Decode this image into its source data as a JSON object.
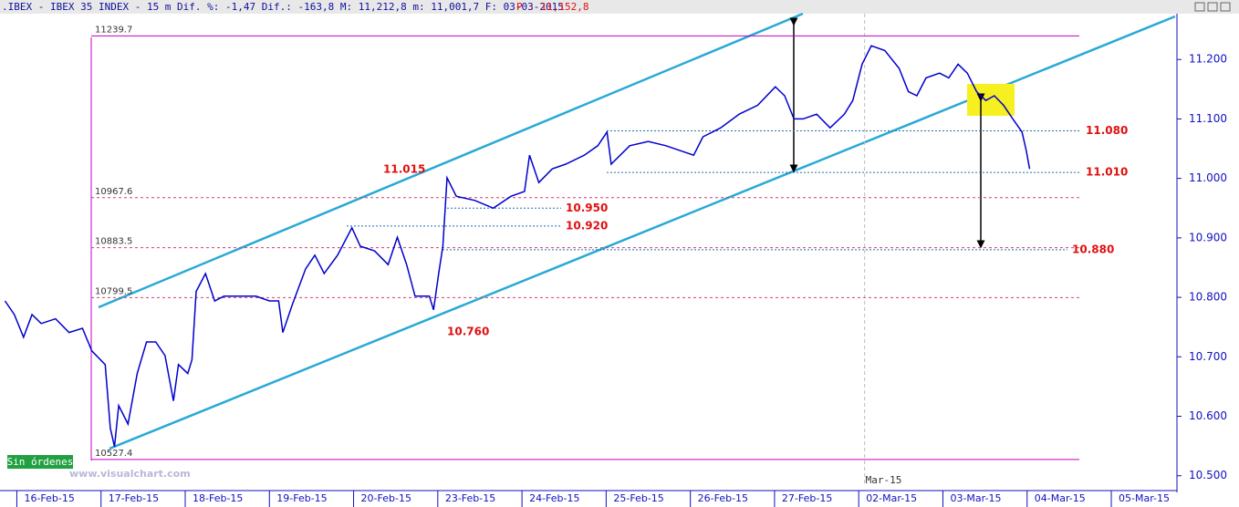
{
  "chart_data": {
    "type": "line",
    "title": ".IBEX - IBEX 35 INDEX -  15 m Dif. %: -1,47 Dif.: -163,8 M: 11,212,8 m: 11,001,7 F: 03-03-2015",
    "last_price": "P : 11,152,8",
    "button": "Sin órdenes",
    "watermark": "www.visualchart.com",
    "color": "#0000cc",
    "x": [
      -0.14,
      -0.03,
      0.08,
      0.18,
      0.29,
      0.46,
      0.62,
      0.78,
      0.89,
      1.05,
      1.11,
      1.16,
      1.21,
      1.32,
      1.43,
      1.54,
      1.65,
      1.76,
      1.86,
      1.92,
      2.03,
      2.08,
      2.13,
      2.24,
      2.35,
      2.46,
      2.62,
      2.84,
      3.0,
      3.11,
      3.16,
      3.27,
      3.43,
      3.54,
      3.65,
      3.81,
      3.98,
      4.08,
      4.25,
      4.41,
      4.52,
      4.63,
      4.73,
      4.9,
      4.95,
      5.01,
      5.06,
      5.11,
      5.22,
      5.44,
      5.66,
      5.87,
      6.03,
      6.09,
      6.2,
      6.36,
      6.52,
      6.74,
      6.9,
      7.01,
      7.06,
      7.28,
      7.5,
      7.71,
      8.04,
      8.15,
      8.36,
      8.58,
      8.8,
      9.01,
      9.12,
      9.23,
      9.34,
      9.5,
      9.66,
      9.83,
      9.93,
      10.04,
      10.15,
      10.31,
      10.48,
      10.59,
      10.69,
      10.8,
      10.96,
      11.07,
      11.18,
      11.29,
      11.4,
      11.51,
      11.61,
      11.72,
      11.83,
      11.94,
      11.99,
      12.03
    ],
    "values": [
      10794,
      10771,
      10733,
      10771,
      10756,
      10764,
      10741,
      10748,
      10710,
      10687,
      10580,
      10549,
      10618,
      10587,
      10672,
      10725,
      10725,
      10702,
      10626,
      10687,
      10672,
      10695,
      10810,
      10840,
      10794,
      10802,
      10802,
      10802,
      10794,
      10794,
      10741,
      10787,
      10848,
      10871,
      10840,
      10871,
      10917,
      10886,
      10878,
      10855,
      10901,
      10855,
      10802,
      10802,
      10779,
      10840,
      10886,
      11001,
      10970,
      10963,
      10950,
      10970,
      10978,
      11039,
      10993,
      11016,
      11024,
      11039,
      11055,
      11078,
      11024,
      11055,
      11062,
      11055,
      11039,
      11070,
      11085,
      11108,
      11123,
      11154,
      11139,
      11100,
      11100,
      11108,
      11085,
      11108,
      11131,
      11192,
      11223,
      11215,
      11185,
      11146,
      11139,
      11169,
      11177,
      11169,
      11192,
      11177,
      11146,
      11131,
      11139,
      11123,
      11100,
      11078,
      11047,
      11016
    ],
    "xlim": [
      -0.2,
      13.78
    ],
    "xticks": [
      {
        "value": 0,
        "label": "16-Feb-15"
      },
      {
        "value": 1,
        "label": "17-Feb-15"
      },
      {
        "value": 2,
        "label": "18-Feb-15"
      },
      {
        "value": 3,
        "label": "19-Feb-15"
      },
      {
        "value": 4,
        "label": "20-Feb-15"
      },
      {
        "value": 5,
        "label": "23-Feb-15"
      },
      {
        "value": 6,
        "label": "24-Feb-15"
      },
      {
        "value": 7,
        "label": "25-Feb-15"
      },
      {
        "value": 8,
        "label": "26-Feb-15"
      },
      {
        "value": 9,
        "label": "27-Feb-15"
      },
      {
        "value": 10,
        "label": "02-Mar-15"
      },
      {
        "value": 11,
        "label": "03-Mar-15"
      },
      {
        "value": 12,
        "label": "04-Mar-15"
      },
      {
        "value": 13,
        "label": "05-Mar-15"
      }
    ],
    "month_marker": {
      "value": 10.07,
      "label": "Mar-15"
    },
    "ylim": [
      10472,
      11277
    ],
    "yticks": [
      {
        "value": 10500,
        "label": "10.500"
      },
      {
        "value": 10600,
        "label": "10.600"
      },
      {
        "value": 10700,
        "label": "10.700"
      },
      {
        "value": 10800,
        "label": "10.800"
      },
      {
        "value": 10900,
        "label": "10.900"
      },
      {
        "value": 11000,
        "label": "11.000"
      },
      {
        "value": 11100,
        "label": "11.100"
      },
      {
        "value": 11200,
        "label": "11.200"
      }
    ],
    "fib_levels": [
      11239.7,
      10967.6,
      10883.5,
      10799.5,
      10527.4
    ],
    "price_levels": [
      {
        "value": 11015,
        "label": "11.015"
      },
      {
        "value": 10950,
        "label": "10.950"
      },
      {
        "value": 10920,
        "label": "10.920"
      },
      {
        "value": 10760,
        "label": "10.760"
      },
      {
        "value": 11080,
        "label": "11.080"
      },
      {
        "value": 11010,
        "label": "11.010"
      },
      {
        "value": 10880,
        "label": "10.880"
      }
    ]
  }
}
